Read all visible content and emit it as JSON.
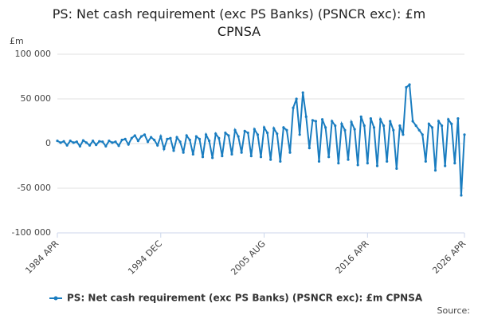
{
  "chart_data": {
    "type": "line",
    "title": "PS: Net cash requirement (exc PS Banks) (PSNCR exc): £m CPNSA",
    "y_unit_label": "£m",
    "source_label": "Source:",
    "x": [
      "1984 APR",
      "1984 AUG",
      "1984 DEC",
      "1985 APR",
      "1985 AUG",
      "1985 DEC",
      "1986 APR",
      "1986 AUG",
      "1986 DEC",
      "1987 APR",
      "1987 AUG",
      "1987 DEC",
      "1988 APR",
      "1988 AUG",
      "1988 DEC",
      "1989 APR",
      "1989 AUG",
      "1989 DEC",
      "1990 APR",
      "1990 AUG",
      "1990 DEC",
      "1991 APR",
      "1991 AUG",
      "1991 DEC",
      "1992 APR",
      "1992 AUG",
      "1992 DEC",
      "1993 APR",
      "1993 AUG",
      "1993 DEC",
      "1994 APR",
      "1994 AUG",
      "1994 DEC",
      "1995 APR",
      "1995 AUG",
      "1995 DEC",
      "1996 APR",
      "1996 AUG",
      "1996 DEC",
      "1997 APR",
      "1997 AUG",
      "1997 DEC",
      "1998 APR",
      "1998 AUG",
      "1998 DEC",
      "1999 APR",
      "1999 AUG",
      "1999 DEC",
      "2000 APR",
      "2000 AUG",
      "2000 DEC",
      "2001 APR",
      "2001 AUG",
      "2001 DEC",
      "2002 APR",
      "2002 AUG",
      "2002 DEC",
      "2003 APR",
      "2003 AUG",
      "2003 DEC",
      "2004 APR",
      "2004 AUG",
      "2004 DEC",
      "2005 APR",
      "2005 AUG",
      "2005 DEC",
      "2006 APR",
      "2006 AUG",
      "2006 DEC",
      "2007 APR",
      "2007 AUG",
      "2007 DEC",
      "2008 APR",
      "2008 AUG",
      "2008 DEC",
      "2009 APR",
      "2009 AUG",
      "2009 DEC",
      "2010 APR",
      "2010 AUG",
      "2010 DEC",
      "2011 APR",
      "2011 AUG",
      "2011 DEC",
      "2012 APR",
      "2012 AUG",
      "2012 DEC",
      "2013 APR",
      "2013 AUG",
      "2013 DEC",
      "2014 APR",
      "2014 AUG",
      "2014 DEC",
      "2015 APR",
      "2015 AUG",
      "2015 DEC",
      "2016 APR",
      "2016 AUG",
      "2016 DEC",
      "2017 APR",
      "2017 AUG",
      "2017 DEC",
      "2018 APR",
      "2018 AUG",
      "2018 DEC",
      "2019 APR",
      "2019 AUG",
      "2019 DEC",
      "2020 APR",
      "2020 AUG",
      "2020 DEC",
      "2021 APR",
      "2021 AUG",
      "2021 DEC",
      "2022 APR",
      "2022 AUG",
      "2022 DEC",
      "2023 APR",
      "2023 AUG",
      "2023 DEC",
      "2024 APR",
      "2024 AUG",
      "2024 DEC",
      "2025 APR",
      "2025 AUG",
      "2025 DEC",
      "2026 APR"
    ],
    "series": [
      {
        "name": "PS: Net cash requirement (exc PS Banks) (PSNCR exc): £m CPNSA",
        "color": "#1a7dc0",
        "values": [
          3000,
          1000,
          2500,
          -2000,
          3000,
          1000,
          2000,
          -3000,
          3500,
          1000,
          -2000,
          3000,
          -1500,
          2500,
          2000,
          -3000,
          3000,
          1000,
          2000,
          -2500,
          4000,
          5000,
          -1000,
          6000,
          9000,
          3000,
          8000,
          10000,
          2000,
          7000,
          4000,
          -2000,
          8000,
          -6000,
          5000,
          6000,
          -8000,
          7000,
          2000,
          -10000,
          9000,
          4000,
          -12000,
          8000,
          5000,
          -15000,
          10000,
          3000,
          -16000,
          11000,
          6000,
          -14000,
          12000,
          9000,
          -12000,
          15000,
          8000,
          -10000,
          14000,
          12000,
          -14000,
          16000,
          10000,
          -15000,
          18000,
          12000,
          -18000,
          17000,
          11000,
          -20000,
          18000,
          15000,
          -10000,
          40000,
          50000,
          10000,
          57000,
          30000,
          -5000,
          26000,
          25000,
          -20000,
          27000,
          18000,
          -15000,
          25000,
          20000,
          -22000,
          22000,
          15000,
          -18000,
          24000,
          16000,
          -24000,
          30000,
          20000,
          -22000,
          28000,
          18000,
          -25000,
          27000,
          20000,
          -20000,
          25000,
          15000,
          -28000,
          20000,
          10000,
          63000,
          66000,
          25000,
          20000,
          15000,
          10000,
          -20000,
          22000,
          18000,
          -30000,
          25000,
          20000,
          -25000,
          27000,
          22000,
          -22000,
          28000,
          -58000,
          10000
        ]
      }
    ],
    "ylim": [
      -100000,
      100000
    ],
    "yticks": [
      {
        "value": -100000,
        "label": "-100 000"
      },
      {
        "value": -50000,
        "label": "-50 000"
      },
      0,
      {
        "value": 50000,
        "label": "50 000"
      },
      {
        "value": 100000,
        "label": "100 000"
      }
    ],
    "xticks": [
      "1984 APR",
      "1994 DEC",
      "2005 AUG",
      "2016 APR",
      "2026 APR"
    ],
    "grid": true
  }
}
